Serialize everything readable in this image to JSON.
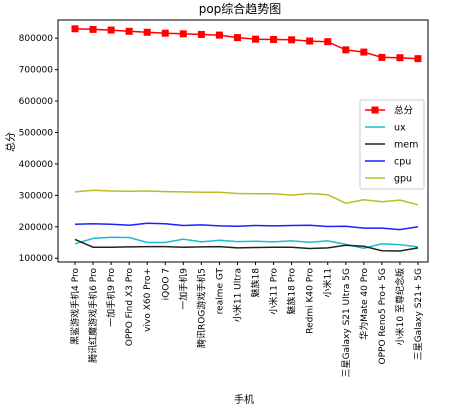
{
  "chart_data": {
    "type": "line",
    "title": "pop综合趋势图",
    "xlabel": "手机",
    "ylabel": "总分",
    "ylim": [
      88000,
      858000
    ],
    "yticks": [
      100000,
      200000,
      300000,
      400000,
      500000,
      600000,
      700000,
      800000
    ],
    "ytick_labels": [
      "100000",
      "200000",
      "300000",
      "400000",
      "500000",
      "600000",
      "700000",
      "800000"
    ],
    "categories": [
      "黑鲨游戏手机4 Pro",
      "腾讯红魔游戏手机6 Pro",
      "一加手机9 Pro",
      "OPPO Find X3 Pro",
      "vivo X60 Pro+",
      "iQOO 7",
      "一加手机9",
      "腾讯ROG游戏手机5",
      "realme GT",
      "小米11 Ultra",
      "魅族18",
      "小米11 Pro",
      "魅族18 Pro",
      "Redmi K40 Pro",
      "小米11",
      "三星Galaxy S21 Ultra 5G",
      "华为Mate 40 Pro",
      "OPPO Reno5 Pro+ 5G",
      "小米10 至尊纪念版",
      "三星Galaxy S21+ 5G"
    ],
    "legend_position": "right",
    "grid": false,
    "series": [
      {
        "name": "总分",
        "color": "#ff0000",
        "marker": "square",
        "values": [
          830000,
          828000,
          826000,
          822000,
          819000,
          816000,
          814000,
          812000,
          810000,
          802000,
          797000,
          796000,
          795000,
          791000,
          789000,
          763000,
          756000,
          739000,
          738000,
          735000
        ]
      },
      {
        "name": "ux",
        "color": "#17becf",
        "marker": "none",
        "values": [
          146000,
          163000,
          167000,
          166000,
          150000,
          150000,
          161000,
          152000,
          157000,
          153000,
          154000,
          152000,
          155000,
          151000,
          155000,
          144000,
          132000,
          146000,
          143000,
          136000
        ]
      },
      {
        "name": "mem",
        "color": "#222222",
        "marker": "none",
        "values": [
          160000,
          135000,
          135000,
          136000,
          137000,
          137000,
          135000,
          136000,
          137000,
          133000,
          134000,
          135000,
          135000,
          131000,
          133000,
          141000,
          138000,
          124000,
          123000,
          133000
        ]
      },
      {
        "name": "cpu",
        "color": "#1f1fff",
        "marker": "none",
        "values": [
          208000,
          210000,
          208000,
          205000,
          211000,
          210000,
          204000,
          206000,
          203000,
          202000,
          204000,
          203000,
          204000,
          205000,
          201000,
          202000,
          196000,
          196000,
          191000,
          200000
        ]
      },
      {
        "name": "gpu",
        "color": "#bcbd22",
        "marker": "none",
        "values": [
          311000,
          316000,
          314000,
          313000,
          314000,
          312000,
          311000,
          310000,
          310000,
          306000,
          305000,
          305000,
          301000,
          306000,
          302000,
          275000,
          286000,
          280000,
          285000,
          270000
        ]
      }
    ]
  }
}
